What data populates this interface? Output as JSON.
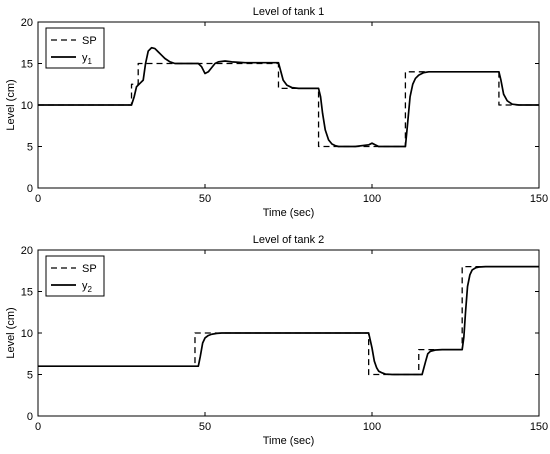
{
  "chart_data": [
    {
      "type": "line",
      "title": "Level of tank 1",
      "xlabel": "Time (sec)",
      "ylabel": "Level (cm)",
      "xlim": [
        0,
        150
      ],
      "ylim": [
        0,
        20
      ],
      "xticks": [
        "0",
        "50",
        "100",
        "150"
      ],
      "yticks": [
        "0",
        "5",
        "10",
        "15",
        "20"
      ],
      "grid": false,
      "legend_position": "top-left",
      "series": [
        {
          "name": "SP",
          "style": "dashed",
          "color": "#000000",
          "x": [
            0,
            28,
            28,
            30,
            30,
            50,
            50,
            72,
            72,
            84,
            84,
            100,
            100,
            110,
            110,
            138,
            138,
            150
          ],
          "y": [
            10,
            10,
            12.5,
            12.5,
            15,
            15,
            15,
            15,
            12,
            12,
            5,
            5,
            5,
            5,
            14,
            14,
            10,
            10
          ]
        },
        {
          "name": "y",
          "name_subscript": "1",
          "style": "solid",
          "color": "#000000",
          "x": [
            0,
            28,
            28.8,
            29.5,
            30.5,
            31.5,
            32.2,
            33,
            34,
            35,
            36,
            37,
            38,
            39.5,
            41,
            43,
            46,
            48,
            49,
            50,
            51,
            52,
            53,
            54,
            56,
            58,
            62,
            66,
            70,
            72,
            72.6,
            73.4,
            74.5,
            76,
            78,
            80,
            82,
            84,
            84.6,
            85.2,
            86,
            87,
            88,
            89,
            90,
            92,
            95,
            99,
            100,
            101,
            102,
            104,
            106,
            108,
            110,
            110.6,
            111.4,
            112.2,
            113,
            114,
            115.5,
            117,
            120,
            125,
            130,
            135,
            138,
            138.6,
            139.4,
            140.5,
            142,
            144,
            146,
            150
          ],
          "y": [
            10,
            10,
            11,
            12.2,
            12.6,
            13,
            15,
            16.5,
            16.9,
            16.8,
            16.4,
            16,
            15.6,
            15.2,
            15,
            15,
            15,
            15,
            14.6,
            13.8,
            14,
            14.5,
            15,
            15.2,
            15.3,
            15.2,
            15.1,
            15.1,
            15.1,
            15.1,
            14.2,
            13,
            12.4,
            12.1,
            12,
            12,
            12,
            12,
            11,
            9,
            7,
            5.8,
            5.3,
            5.1,
            5,
            5,
            5,
            5.2,
            5.4,
            5.2,
            5,
            5,
            5,
            5,
            5,
            7.5,
            11,
            12.5,
            13.2,
            13.6,
            13.9,
            14,
            14,
            14,
            14,
            14,
            14,
            13,
            11.3,
            10.5,
            10.1,
            10,
            10,
            10
          ]
        }
      ]
    },
    {
      "type": "line",
      "title": "Level of tank 2",
      "xlabel": "Time (sec)",
      "ylabel": "Level (cm)",
      "xlim": [
        0,
        150
      ],
      "ylim": [
        0,
        20
      ],
      "xticks": [
        "0",
        "50",
        "100",
        "150"
      ],
      "yticks": [
        "0",
        "5",
        "10",
        "15",
        "20"
      ],
      "grid": false,
      "legend_position": "top-left",
      "series": [
        {
          "name": "SP",
          "style": "dashed",
          "color": "#000000",
          "x": [
            0,
            47,
            47,
            99,
            99,
            114,
            114,
            127,
            127,
            150
          ],
          "y": [
            6,
            6,
            10,
            10,
            5,
            5,
            8,
            8,
            18,
            18
          ]
        },
        {
          "name": "y",
          "name_subscript": "2",
          "style": "solid",
          "color": "#000000",
          "x": [
            0,
            48,
            48.6,
            49.3,
            50,
            51,
            52,
            53.5,
            55,
            60,
            80,
            99,
            100,
            100.7,
            101.4,
            102,
            103,
            104,
            106,
            110,
            115,
            116,
            116.7,
            117.5,
            119,
            121,
            123,
            125,
            126,
            127,
            127.5,
            128,
            128.6,
            129.3,
            130,
            131,
            132,
            134,
            137,
            140,
            150
          ],
          "y": [
            6,
            6,
            7.2,
            8.8,
            9.4,
            9.7,
            9.85,
            9.95,
            10,
            10,
            10,
            10,
            8.2,
            6.6,
            5.8,
            5.4,
            5.2,
            5.05,
            5,
            5,
            5,
            6.5,
            7.5,
            7.8,
            7.95,
            8,
            8,
            8,
            8,
            8,
            9.5,
            12.5,
            15.6,
            17,
            17.6,
            17.85,
            17.95,
            18,
            18,
            18,
            18
          ]
        }
      ]
    }
  ]
}
